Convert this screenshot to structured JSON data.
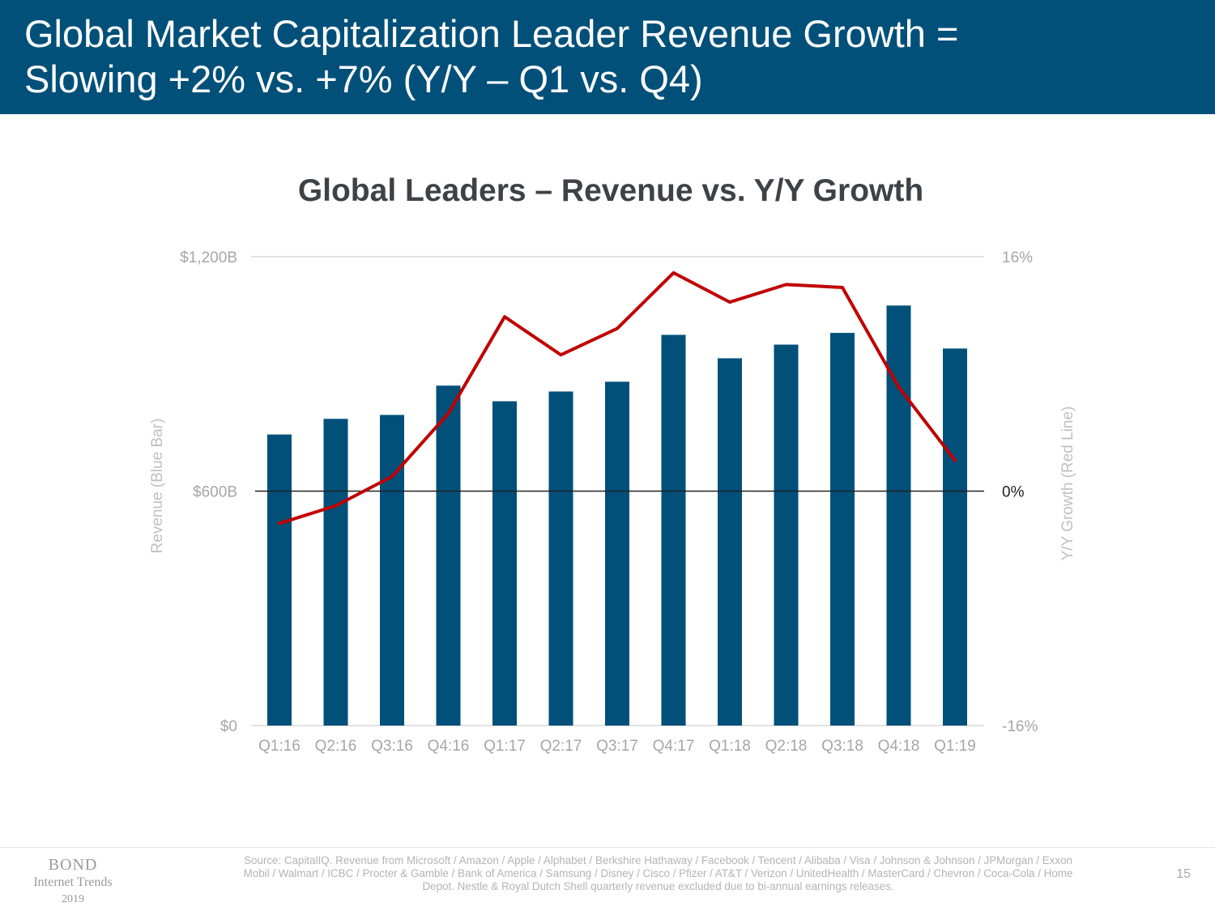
{
  "header": {
    "title_line1": "Global Market Capitalization Leader Revenue Growth =",
    "title_line2": "Slowing +2% vs. +7% (Y/Y – Q1 vs. Q4)"
  },
  "chart_data": {
    "type": "bar",
    "title": "Global Leaders – Revenue vs. Y/Y Growth",
    "categories": [
      "Q1:16",
      "Q2:16",
      "Q3:16",
      "Q4:16",
      "Q1:17",
      "Q2:17",
      "Q3:17",
      "Q4:17",
      "Q1:18",
      "Q2:18",
      "Q3:18",
      "Q4:18",
      "Q1:19"
    ],
    "series": [
      {
        "name": "Revenue (Blue Bar)",
        "type": "bar",
        "axis": "left",
        "values": [
          745,
          785,
          795,
          870,
          830,
          855,
          880,
          1000,
          940,
          975,
          1005,
          1075,
          965
        ]
      },
      {
        "name": "Y/Y Growth (Red Line)",
        "type": "line",
        "axis": "right",
        "values": [
          -2.2,
          -1.0,
          1.0,
          5.3,
          11.9,
          9.3,
          11.1,
          14.9,
          12.9,
          14.1,
          13.9,
          7.1,
          2.1
        ]
      }
    ],
    "ylabel_left": "Revenue (Blue Bar)",
    "ylabel_right": "Y/Y Growth (Red Line)",
    "ylim_left": [
      0,
      1200
    ],
    "ylim_right": [
      -16,
      16
    ],
    "ticks_left": [
      "$0",
      "$600B",
      "$1,200B"
    ],
    "ticks_right": [
      "-16%",
      "0%",
      "16%"
    ],
    "grid": "top and bottom lines only; dark zero line at 0%",
    "colors": {
      "bar": "#00507a",
      "line": "#c00000",
      "zero_line": "#222222",
      "gridline": "#d9d9d9"
    }
  },
  "footer": {
    "logo_brand": "BOND",
    "logo_sub": "Internet Trends",
    "logo_year": "2019",
    "source": "Source: CapitalIQ. Revenue from Microsoft / Amazon / Apple / Alphabet / Berkshire Hathaway / Facebook / Tencent / Alibaba / Visa / Johnson & Johnson / JPMorgan / Exxon Mobil / Walmart / ICBC / Procter & Gamble / Bank of America / Samsung / Disney / Cisco / Pfizer / AT&T / Verizon / UnitedHealth / MasterCard / Chevron / Coca-Cola / Home Depot. Nestle & Royal Dutch Shell quarterly revenue excluded due to bi-annual earnings releases.",
    "page_number": "15"
  }
}
